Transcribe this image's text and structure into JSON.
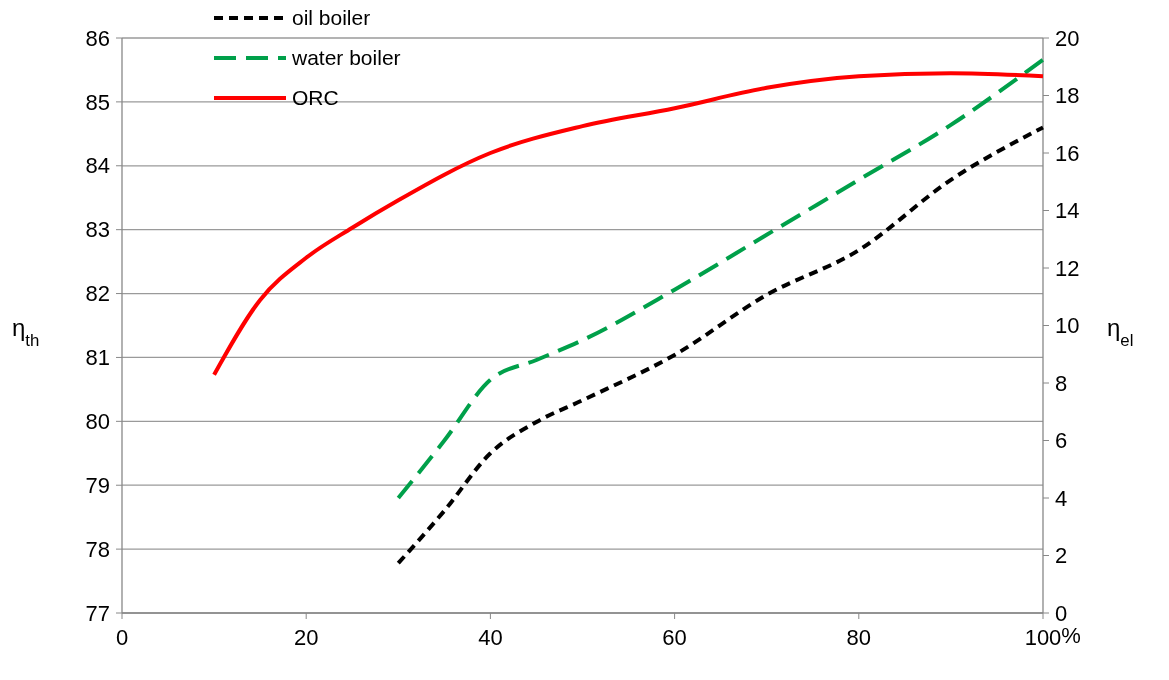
{
  "chart_data": {
    "type": "line",
    "xlabel": "%",
    "ylabel": "η$_{th}$",
    "y2label": "η$_{el}$",
    "xlim": [
      0,
      100
    ],
    "xticks": [
      0,
      20,
      40,
      60,
      80,
      100
    ],
    "ylim": [
      77,
      86
    ],
    "yticks": [
      77,
      78,
      79,
      80,
      81,
      82,
      83,
      84,
      85,
      86
    ],
    "y2lim": [
      0,
      20
    ],
    "y2ticks": [
      0,
      2,
      4,
      6,
      8,
      10,
      12,
      14,
      16,
      18,
      20
    ],
    "grid": "y",
    "legend": "top left",
    "series": [
      {
        "name": "oil boiler",
        "color": "#000000",
        "line_style": "dotted",
        "x": [
          30,
          35,
          40,
          45,
          50,
          60,
          70,
          80,
          90,
          100
        ],
        "values": [
          77.78,
          78.6,
          79.5,
          79.99,
          80.33,
          81.04,
          81.98,
          82.68,
          83.78,
          84.6
        ]
      },
      {
        "name": "water boiler",
        "color": "#00a04a",
        "line_style": "dashed",
        "x": [
          30,
          35,
          40,
          45,
          50,
          60,
          70,
          80,
          90,
          100
        ],
        "values": [
          78.8,
          79.7,
          80.65,
          80.96,
          81.27,
          82.06,
          82.92,
          83.78,
          84.64,
          85.66
        ]
      },
      {
        "name": "ORC",
        "color": "#ff0000",
        "line_style": "solid",
        "x": [
          10,
          15,
          20,
          25,
          30,
          40,
          50,
          60,
          70,
          80,
          90,
          100
        ],
        "values": [
          80.73,
          81.9,
          82.56,
          83.03,
          83.46,
          84.2,
          84.62,
          84.9,
          85.22,
          85.4,
          85.45,
          85.4
        ]
      }
    ]
  }
}
